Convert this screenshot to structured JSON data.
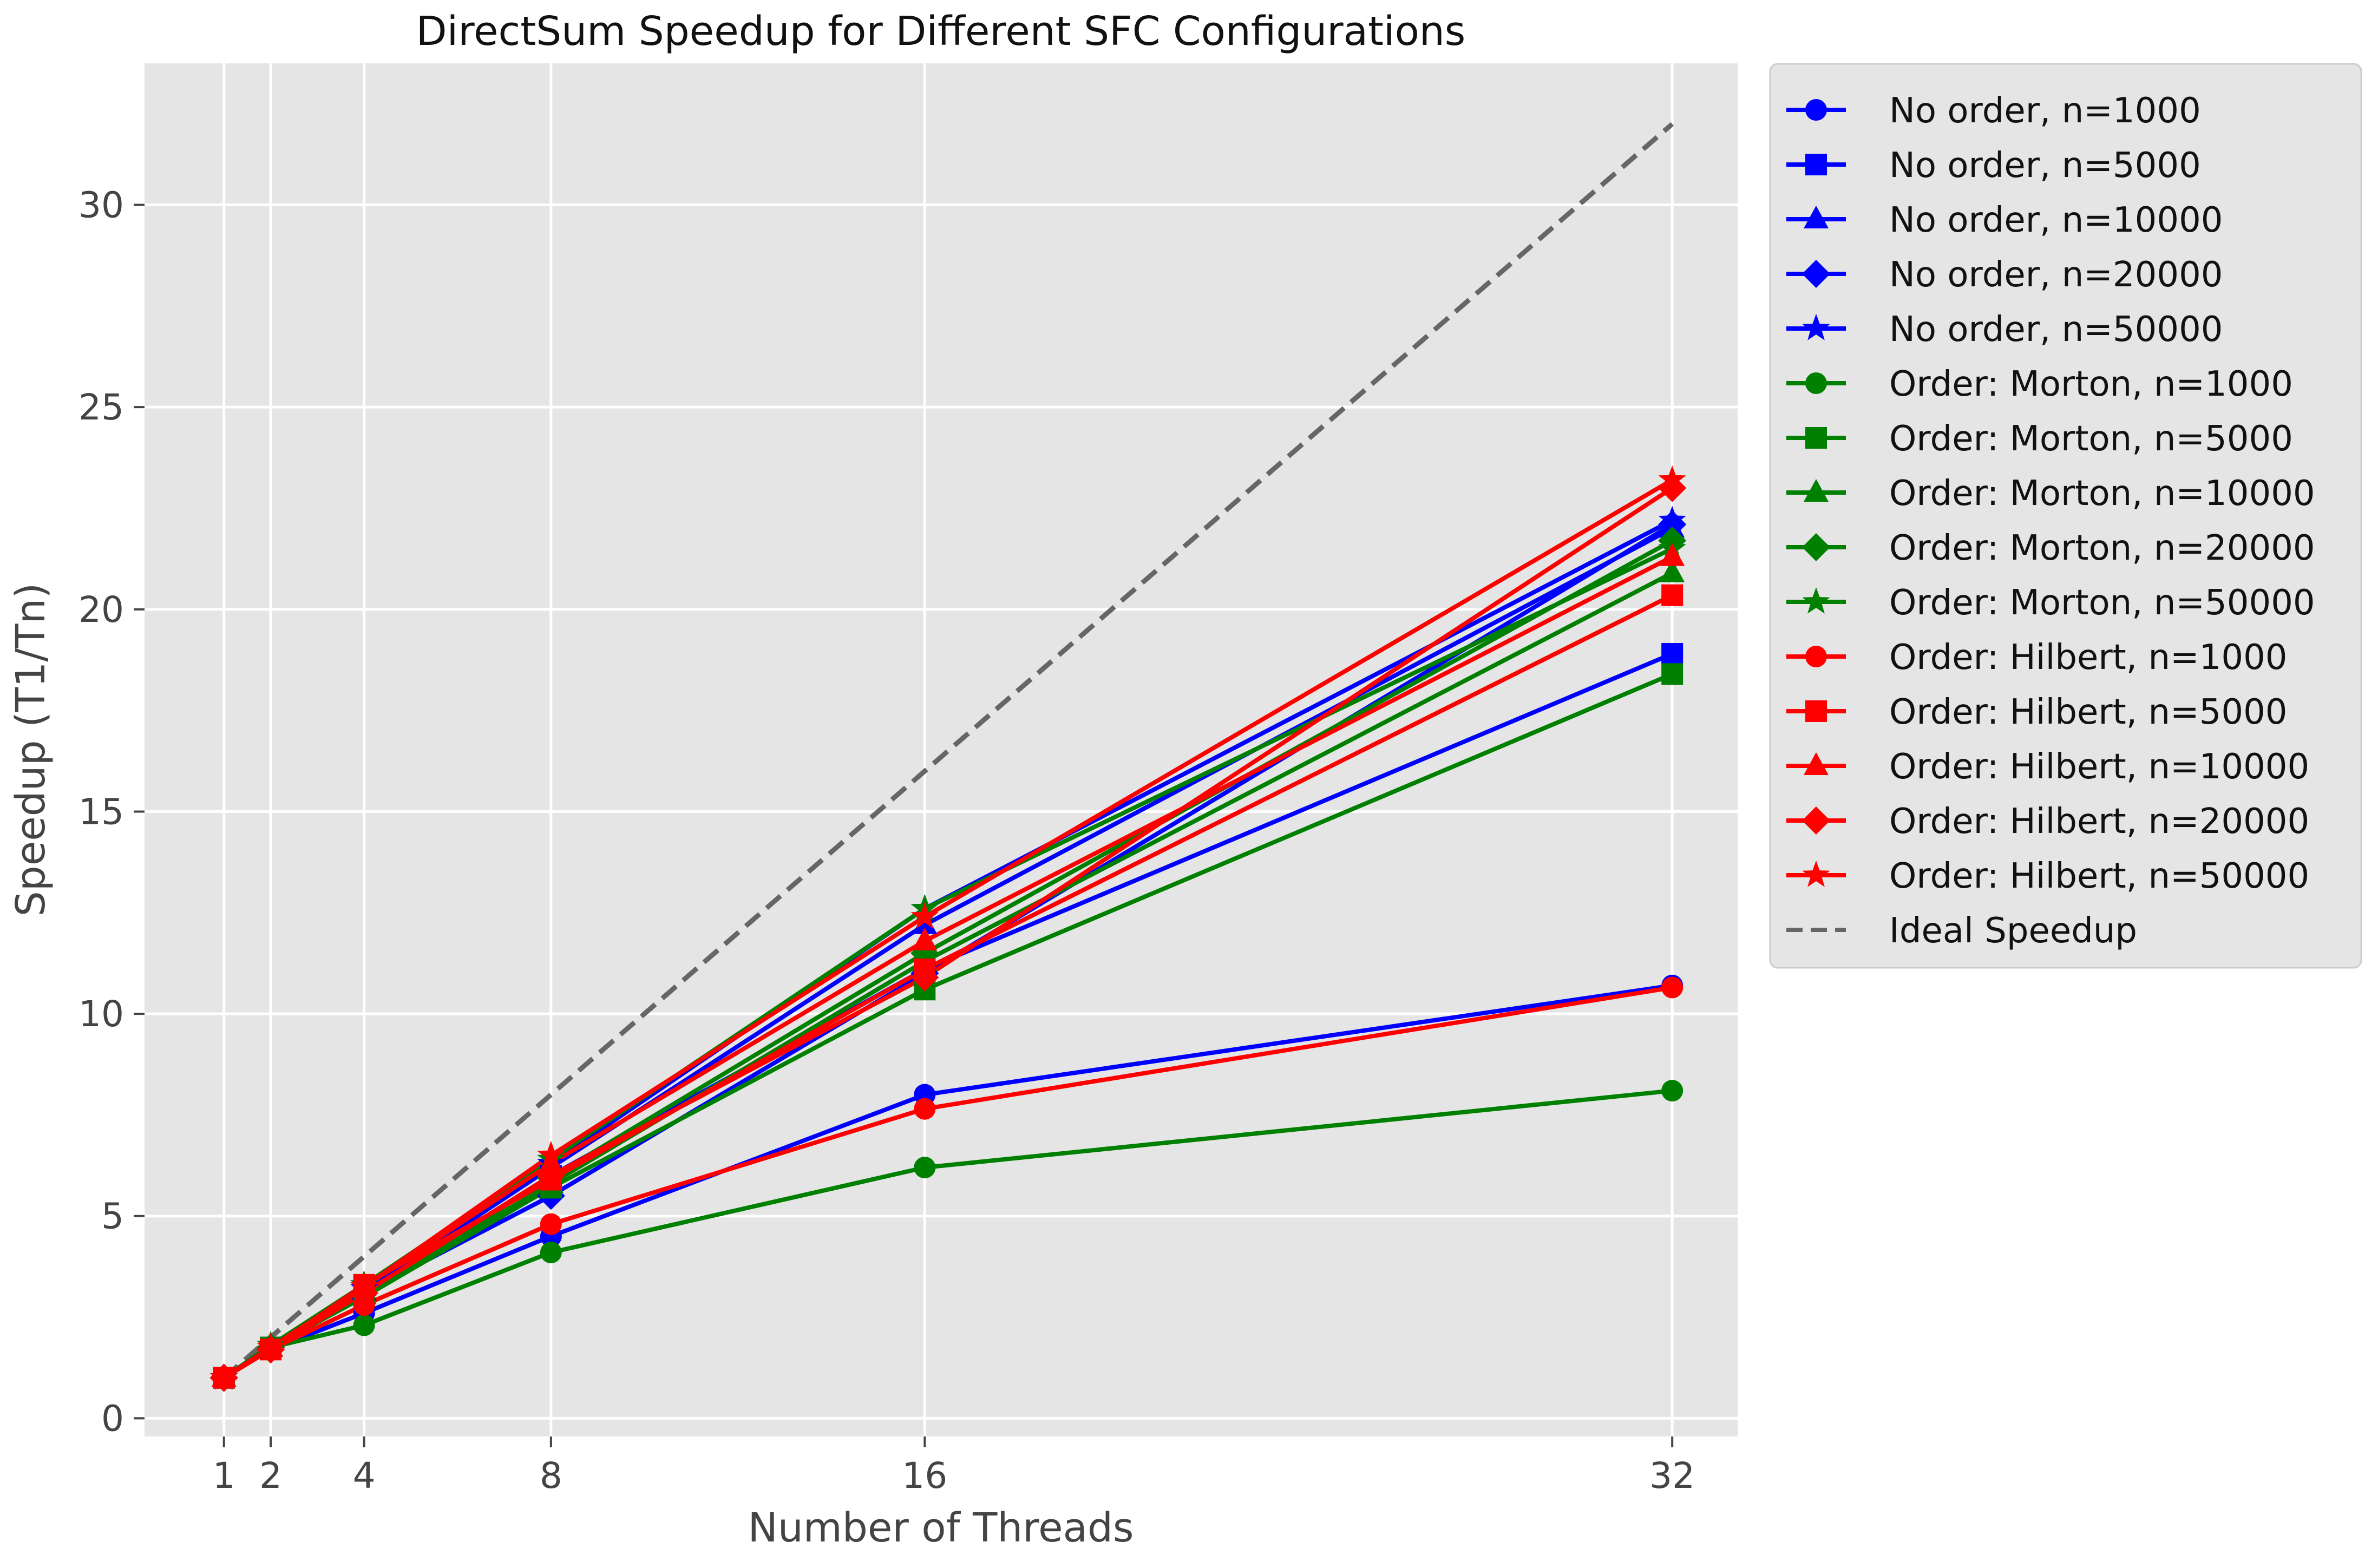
{
  "chart_data": {
    "type": "line",
    "title": "DirectSum Speedup for Different SFC Configurations",
    "xlabel": "Number of Threads",
    "ylabel": "Speedup (T1/Tn)",
    "x": [
      1,
      2,
      4,
      8,
      16,
      32
    ],
    "xticks": [
      1,
      2,
      4,
      8,
      16,
      32
    ],
    "yticks": [
      0,
      5,
      10,
      15,
      20,
      25,
      30
    ],
    "xlim": [
      -0.7,
      33.4
    ],
    "ylim": [
      -0.45,
      33.5
    ],
    "grid": true,
    "legend_position": "outside-right",
    "series": [
      {
        "name": "No order, n=1000",
        "color": "#0000ff",
        "marker": "circle",
        "values": [
          1.0,
          1.7,
          2.6,
          4.5,
          8.0,
          10.7
        ]
      },
      {
        "name": "No order, n=5000",
        "color": "#0000ff",
        "marker": "square",
        "values": [
          1.0,
          1.75,
          3.1,
          6.0,
          11.1,
          18.9
        ]
      },
      {
        "name": "No order, n=10000",
        "color": "#0000ff",
        "marker": "triangle",
        "values": [
          1.0,
          1.75,
          3.15,
          6.2,
          12.2,
          22.0
        ]
      },
      {
        "name": "No order, n=20000",
        "color": "#0000ff",
        "marker": "diamond",
        "values": [
          1.0,
          1.75,
          3.1,
          5.5,
          11.0,
          22.1
        ]
      },
      {
        "name": "No order, n=50000",
        "color": "#0000ff",
        "marker": "star",
        "values": [
          1.0,
          1.8,
          3.2,
          6.3,
          12.6,
          22.2
        ]
      },
      {
        "name": "Order: Morton, n=1000",
        "color": "#008000",
        "marker": "circle",
        "values": [
          1.0,
          1.75,
          2.3,
          4.1,
          6.2,
          8.1
        ]
      },
      {
        "name": "Order: Morton, n=5000",
        "color": "#008000",
        "marker": "square",
        "values": [
          1.0,
          1.75,
          3.0,
          5.7,
          10.6,
          18.4
        ]
      },
      {
        "name": "Order: Morton, n=10000",
        "color": "#008000",
        "marker": "triangle",
        "values": [
          1.0,
          1.75,
          3.05,
          5.8,
          11.3,
          20.9
        ]
      },
      {
        "name": "Order: Morton, n=20000",
        "color": "#008000",
        "marker": "diamond",
        "values": [
          1.0,
          1.75,
          3.1,
          5.95,
          11.5,
          21.7
        ]
      },
      {
        "name": "Order: Morton, n=50000",
        "color": "#008000",
        "marker": "star",
        "values": [
          1.0,
          1.8,
          3.3,
          6.4,
          12.6,
          21.5
        ]
      },
      {
        "name": "Order: Hilbert, n=1000",
        "color": "#ff0000",
        "marker": "circle",
        "values": [
          1.0,
          1.7,
          2.8,
          4.8,
          7.65,
          10.65
        ]
      },
      {
        "name": "Order: Hilbert, n=5000",
        "color": "#ff0000",
        "marker": "square",
        "values": [
          1.0,
          1.7,
          3.3,
          5.9,
          11.1,
          20.35
        ]
      },
      {
        "name": "Order: Hilbert, n=10000",
        "color": "#ff0000",
        "marker": "triangle",
        "values": [
          1.0,
          1.75,
          3.25,
          6.3,
          11.8,
          21.3
        ]
      },
      {
        "name": "Order: Hilbert, n=20000",
        "color": "#ff0000",
        "marker": "diamond",
        "values": [
          1.0,
          1.7,
          3.1,
          6.0,
          10.9,
          23.0
        ]
      },
      {
        "name": "Order: Hilbert, n=50000",
        "color": "#ff0000",
        "marker": "star",
        "values": [
          1.0,
          1.75,
          3.25,
          6.5,
          12.4,
          23.2
        ]
      }
    ],
    "reference_line": {
      "name": "Ideal Speedup",
      "color": "#666666",
      "style": "dashed",
      "x": [
        1,
        32
      ],
      "values": [
        1,
        32
      ]
    }
  }
}
